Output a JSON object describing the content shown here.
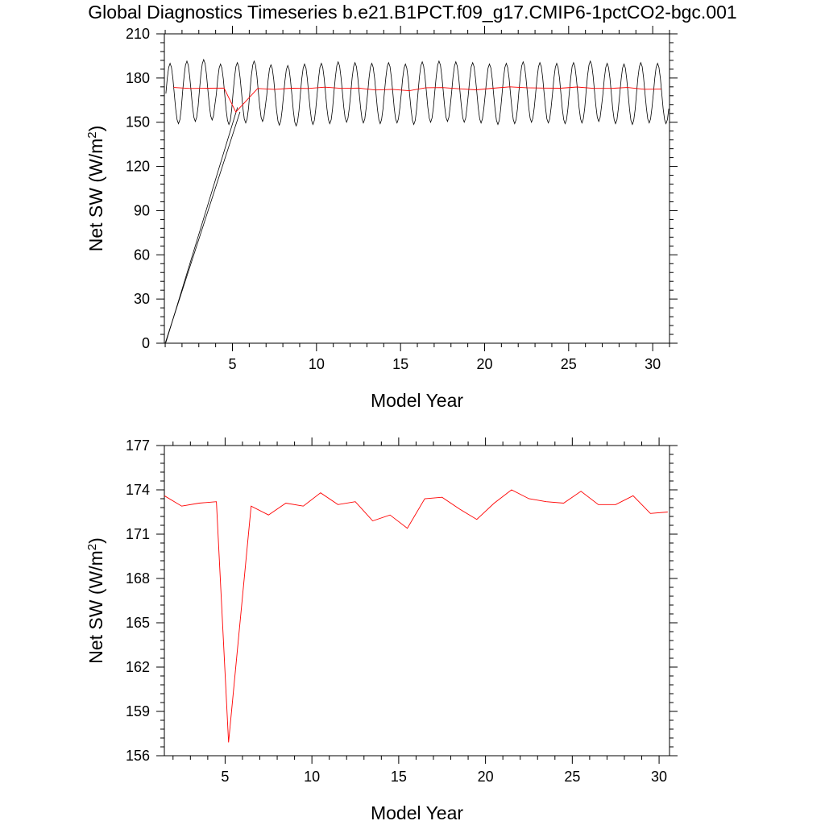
{
  "title": "Global Diagnostics Timeseries b.e21.B1PCT.f09_g17.CMIP6-1pctCO2-bgc.001",
  "colors": {
    "monthly": "#000000",
    "annual": "#ff0000",
    "axis": "#000000"
  },
  "chart_data": [
    {
      "type": "line",
      "xlabel": "Model Year",
      "ylabel_main": "Net SW (W/m",
      "ylabel_sup": "2",
      "ylabel_close": ")",
      "xlim": [
        0.95,
        31.0
      ],
      "ylim": [
        0,
        210
      ],
      "xticks": [
        5,
        10,
        15,
        20,
        25,
        30
      ],
      "xtick_labels": [
        "5",
        "10",
        "15",
        "20",
        "25",
        "30"
      ],
      "yticks": [
        0,
        30,
        60,
        90,
        120,
        150,
        180,
        210
      ],
      "ytick_labels": [
        "0",
        "30",
        "60",
        "90",
        "120",
        "150",
        "180",
        "210"
      ],
      "monthly": {
        "start_year": 1.04,
        "step": 0.0833333,
        "mean": 169.5,
        "amplitude": 20.5,
        "peak_phase": 0.25,
        "year_offsets": [
          0,
          1.5,
          2.5,
          -0.5,
          0.5,
          1.5,
          -1,
          -1.5,
          -0.5,
          0,
          1,
          0.5,
          0,
          0.5,
          -0.5,
          1,
          1.5,
          1,
          0.5,
          -0.5,
          0,
          1,
          0.5,
          0,
          0.5,
          1.5,
          0,
          -0.5,
          0.5,
          0
        ],
        "spurious_points": [
          [
            1.04,
            0.5
          ],
          [
            5.3,
            160
          ],
          [
            1.0,
            0
          ],
          [
            5.45,
            157
          ]
        ]
      },
      "annual": {
        "x": [
          1.5,
          2.5,
          3.5,
          4.5,
          5.2,
          6.5,
          7.5,
          8.5,
          9.5,
          10.5,
          11.5,
          12.5,
          13.5,
          14.5,
          15.5,
          16.5,
          17.5,
          18.5,
          19.5,
          20.5,
          21.5,
          22.5,
          23.5,
          24.5,
          25.5,
          26.5,
          27.5,
          28.5,
          29.5,
          30.5
        ],
        "y": [
          173.6,
          172.9,
          173.1,
          173.2,
          156.9,
          172.9,
          172.3,
          173.1,
          172.9,
          173.8,
          173.0,
          173.2,
          171.9,
          172.3,
          171.4,
          173.4,
          173.5,
          172.7,
          172.0,
          173.1,
          174.0,
          173.4,
          173.2,
          173.1,
          173.9,
          173.0,
          173.0,
          173.6,
          172.4,
          172.5
        ]
      }
    },
    {
      "type": "line",
      "xlabel": "Model Year",
      "ylabel_main": "Net SW (W/m",
      "ylabel_sup": "2",
      "ylabel_close": ")",
      "xlim": [
        1.5,
        30.6
      ],
      "ylim": [
        156,
        177
      ],
      "xticks": [
        5,
        10,
        15,
        20,
        25,
        30
      ],
      "xtick_labels": [
        "5",
        "10",
        "15",
        "20",
        "25",
        "30"
      ],
      "yticks": [
        156,
        159,
        162,
        165,
        168,
        171,
        174,
        177
      ],
      "ytick_labels": [
        "156",
        "159",
        "162",
        "165",
        "168",
        "171",
        "174",
        "177"
      ],
      "annual": {
        "x": [
          1.5,
          2.5,
          3.5,
          4.5,
          5.2,
          6.5,
          7.5,
          8.5,
          9.5,
          10.5,
          11.5,
          12.5,
          13.5,
          14.5,
          15.5,
          16.5,
          17.5,
          18.5,
          19.5,
          20.5,
          21.5,
          22.5,
          23.5,
          24.5,
          25.5,
          26.5,
          27.5,
          28.5,
          29.5,
          30.5
        ],
        "y": [
          173.6,
          172.9,
          173.1,
          173.2,
          156.9,
          172.9,
          172.3,
          173.1,
          172.9,
          173.8,
          173.0,
          173.2,
          171.9,
          172.3,
          171.4,
          173.4,
          173.5,
          172.7,
          172.0,
          173.1,
          174.0,
          173.4,
          173.2,
          173.1,
          173.9,
          173.0,
          173.0,
          173.6,
          172.4,
          172.5
        ]
      }
    }
  ]
}
